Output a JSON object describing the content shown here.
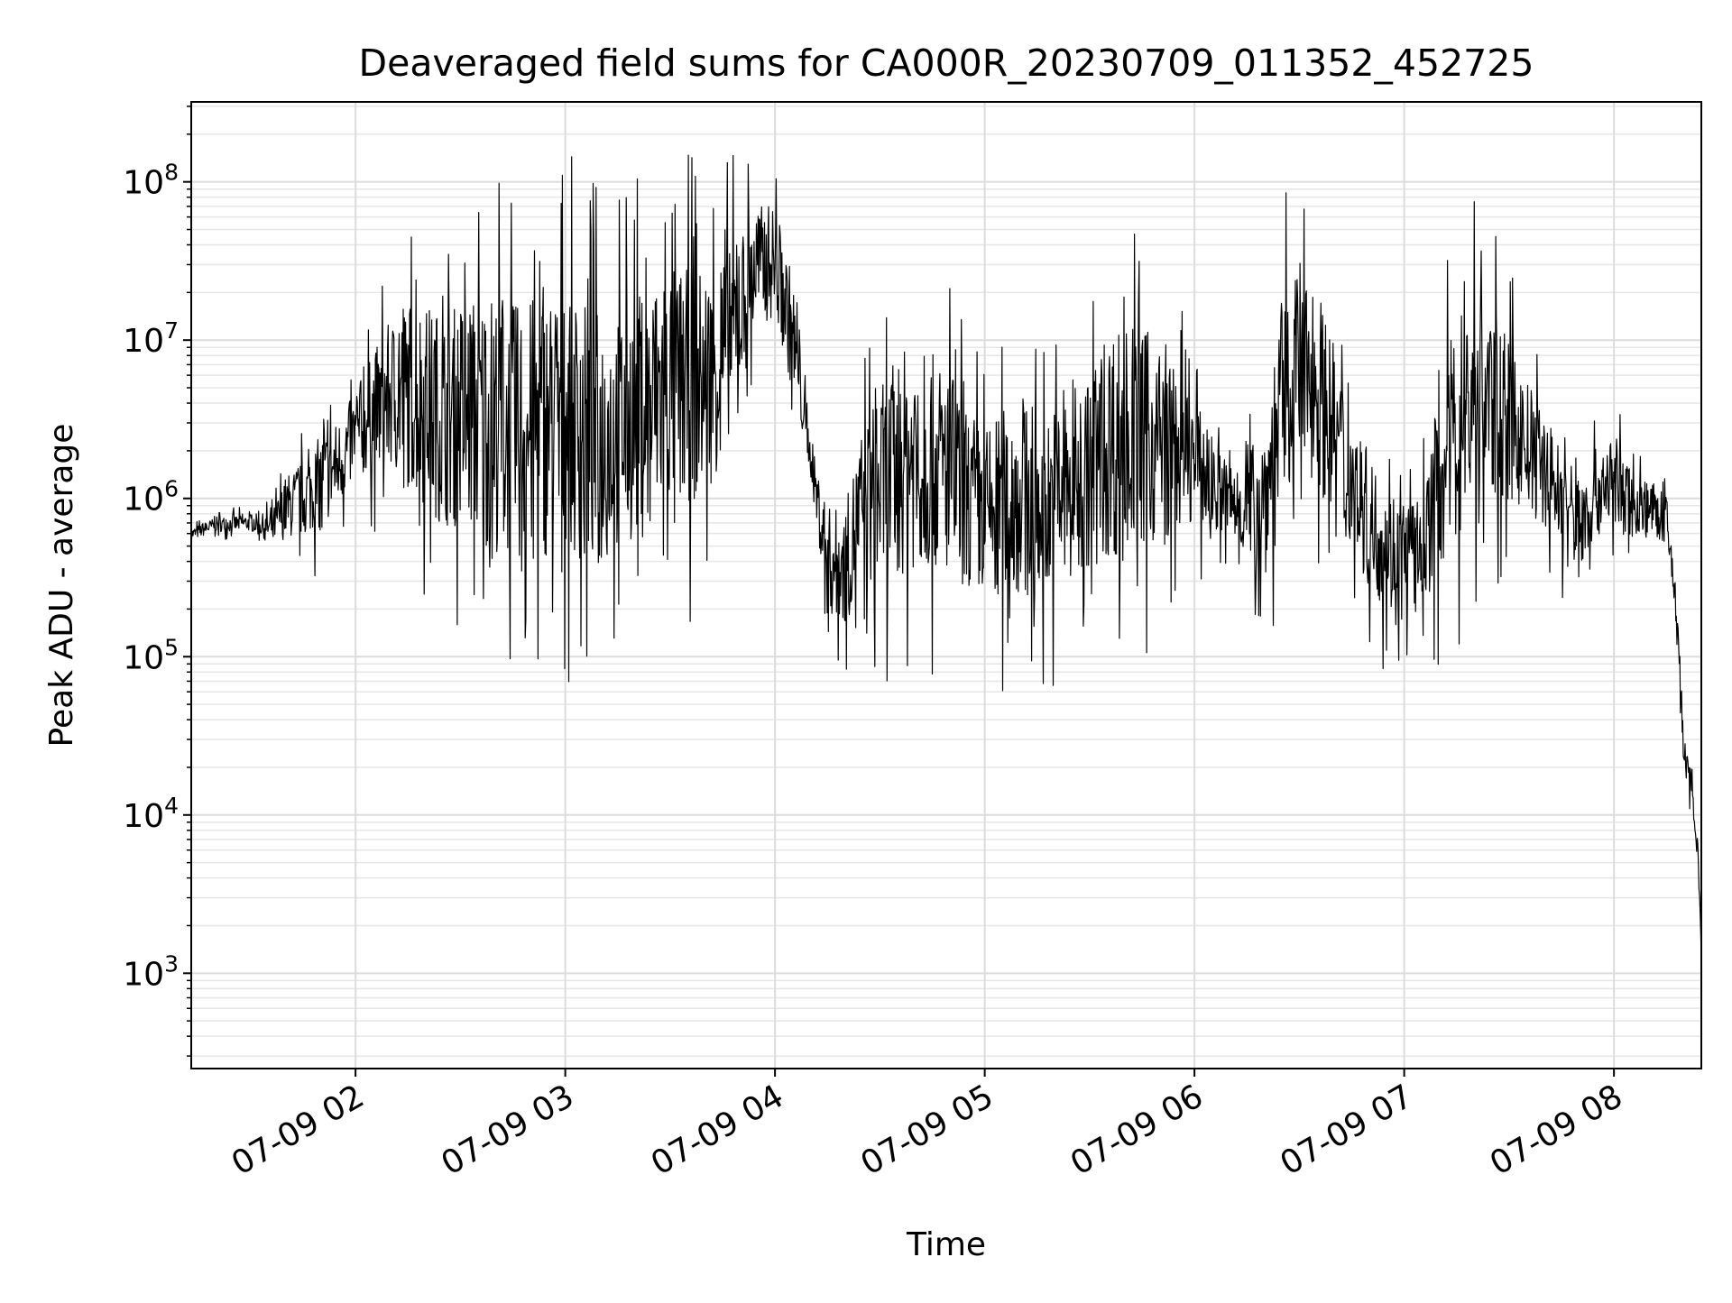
{
  "chart_data": {
    "type": "line",
    "title": "Deaveraged field sums for CA000R_20230709_011352_452725",
    "xlabel": "Time",
    "ylabel": "Peak ADU - average",
    "yscale": "log",
    "grid": true,
    "xlim": [
      "2023-07-09 01:13",
      "2023-07-09 08:25"
    ],
    "ylim": [
      250,
      320000000
    ],
    "x_ticks": [
      {
        "value": "2023-07-09 02:00",
        "label": "07-09 02"
      },
      {
        "value": "2023-07-09 03:00",
        "label": "07-09 03"
      },
      {
        "value": "2023-07-09 04:00",
        "label": "07-09 04"
      },
      {
        "value": "2023-07-09 05:00",
        "label": "07-09 05"
      },
      {
        "value": "2023-07-09 06:00",
        "label": "07-09 06"
      },
      {
        "value": "2023-07-09 07:00",
        "label": "07-09 07"
      },
      {
        "value": "2023-07-09 08:00",
        "label": "07-09 08"
      }
    ],
    "y_ticks": [
      {
        "value": 1000,
        "base": "10",
        "exp": "3"
      },
      {
        "value": 10000,
        "base": "10",
        "exp": "4"
      },
      {
        "value": 100000,
        "base": "10",
        "exp": "5"
      },
      {
        "value": 1000000,
        "base": "10",
        "exp": "6"
      },
      {
        "value": 10000000,
        "base": "10",
        "exp": "7"
      },
      {
        "value": 100000000,
        "base": "10",
        "exp": "8"
      }
    ],
    "series": [
      {
        "color": "#000000",
        "note": "dense noisy trace; each point is [time, lower envelope, upper envelope]",
        "x": [
          "2023-07-09 01:13",
          "2023-07-09 01:20",
          "2023-07-09 01:30",
          "2023-07-09 01:36",
          "2023-07-09 01:40",
          "2023-07-09 01:45",
          "2023-07-09 01:50",
          "2023-07-09 01:55",
          "2023-07-09 02:00",
          "2023-07-09 02:05",
          "2023-07-09 02:10",
          "2023-07-09 02:15",
          "2023-07-09 02:20",
          "2023-07-09 02:25",
          "2023-07-09 02:30",
          "2023-07-09 02:35",
          "2023-07-09 02:40",
          "2023-07-09 02:45",
          "2023-07-09 02:50",
          "2023-07-09 02:55",
          "2023-07-09 03:00",
          "2023-07-09 03:05",
          "2023-07-09 03:10",
          "2023-07-09 03:15",
          "2023-07-09 03:20",
          "2023-07-09 03:25",
          "2023-07-09 03:30",
          "2023-07-09 03:35",
          "2023-07-09 03:40",
          "2023-07-09 03:45",
          "2023-07-09 03:50",
          "2023-07-09 03:55",
          "2023-07-09 04:00",
          "2023-07-09 04:05",
          "2023-07-09 04:10",
          "2023-07-09 04:15",
          "2023-07-09 04:20",
          "2023-07-09 04:25",
          "2023-07-09 04:30",
          "2023-07-09 04:35",
          "2023-07-09 04:40",
          "2023-07-09 04:45",
          "2023-07-09 04:50",
          "2023-07-09 04:55",
          "2023-07-09 05:00",
          "2023-07-09 05:05",
          "2023-07-09 05:10",
          "2023-07-09 05:15",
          "2023-07-09 05:20",
          "2023-07-09 05:25",
          "2023-07-09 05:30",
          "2023-07-09 05:35",
          "2023-07-09 05:40",
          "2023-07-09 05:45",
          "2023-07-09 05:50",
          "2023-07-09 05:55",
          "2023-07-09 06:00",
          "2023-07-09 06:05",
          "2023-07-09 06:10",
          "2023-07-09 06:15",
          "2023-07-09 06:20",
          "2023-07-09 06:25",
          "2023-07-09 06:30",
          "2023-07-09 06:35",
          "2023-07-09 06:40",
          "2023-07-09 06:45",
          "2023-07-09 06:50",
          "2023-07-09 06:55",
          "2023-07-09 07:00",
          "2023-07-09 07:05",
          "2023-07-09 07:10",
          "2023-07-09 07:15",
          "2023-07-09 07:20",
          "2023-07-09 07:25",
          "2023-07-09 07:30",
          "2023-07-09 07:35",
          "2023-07-09 07:40",
          "2023-07-09 07:45",
          "2023-07-09 07:50",
          "2023-07-09 07:55",
          "2023-07-09 08:00",
          "2023-07-09 08:05",
          "2023-07-09 08:10",
          "2023-07-09 08:15",
          "2023-07-09 08:18",
          "2023-07-09 08:20",
          "2023-07-09 08:22",
          "2023-07-09 08:24",
          "2023-07-09 08:25"
        ],
        "low": [
          500000,
          550000,
          550000,
          420000,
          350000,
          330000,
          320000,
          450000,
          700000,
          600000,
          500000,
          300000,
          200000,
          150000,
          120000,
          90000,
          70000,
          60000,
          55000,
          60000,
          70000,
          55000,
          50000,
          80000,
          90000,
          100000,
          150000,
          150000,
          200000,
          400000,
          1500000,
          5000000,
          6000000,
          2000000,
          1200000,
          80000,
          70000,
          75000,
          70000,
          65000,
          70000,
          70000,
          70000,
          65000,
          60000,
          55000,
          55000,
          60000,
          65000,
          65000,
          70000,
          80000,
          80000,
          90000,
          120000,
          200000,
          300000,
          300000,
          300000,
          200000,
          100000,
          200000,
          300000,
          300000,
          250000,
          200000,
          100000,
          80000,
          80000,
          100000,
          80000,
          90000,
          150000,
          250000,
          300000,
          300000,
          300000,
          200000,
          150000,
          300000,
          350000,
          350000,
          400000,
          350000,
          100000,
          15000,
          10000,
          5000,
          1000
        ],
        "high": [
          700000,
          850000,
          900000,
          1000000,
          2200000,
          3000000,
          5000000,
          6000000,
          9000000,
          20000000,
          40000000,
          70000000,
          80000000,
          60000000,
          100000000,
          120000000,
          140000000,
          110000000,
          130000000,
          150000000,
          160000000,
          120000000,
          110000000,
          100000000,
          120000000,
          140000000,
          170000000,
          160000000,
          150000000,
          150000000,
          160000000,
          170000000,
          170000000,
          60000000,
          3000000,
          2000000,
          2000000,
          10000000,
          20000000,
          40000000,
          50000000,
          40000000,
          30000000,
          15000000,
          10000000,
          15000000,
          20000000,
          10000000,
          15000000,
          20000000,
          30000000,
          60000000,
          80000000,
          60000000,
          40000000,
          20000000,
          10000000,
          5000000,
          3000000,
          4000000,
          10000000,
          80000000,
          150000000,
          100000000,
          30000000,
          10000000,
          5000000,
          3000000,
          2500000,
          2000000,
          20000000,
          80000000,
          140000000,
          70000000,
          30000000,
          15000000,
          8000000,
          5000000,
          3000000,
          4000000,
          5000000,
          2500000,
          2000000,
          1500000,
          400000,
          40000,
          25000,
          8000,
          1500
        ]
      }
    ]
  }
}
